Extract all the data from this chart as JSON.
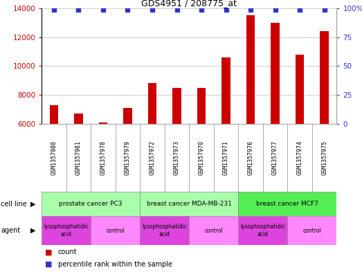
{
  "title": "GDS4951 / 208775_at",
  "samples": [
    "GSM1357980",
    "GSM1357981",
    "GSM1357978",
    "GSM1357979",
    "GSM1357972",
    "GSM1357973",
    "GSM1357970",
    "GSM1357971",
    "GSM1357976",
    "GSM1357977",
    "GSM1357974",
    "GSM1357975"
  ],
  "counts": [
    7300,
    6700,
    6100,
    7100,
    8800,
    8500,
    8500,
    10600,
    13500,
    13000,
    10800,
    12400
  ],
  "ylim_left": [
    6000,
    14000
  ],
  "ylim_right": [
    0,
    100
  ],
  "bar_color": "#cc0000",
  "dot_color": "#3333cc",
  "cell_line_groups": [
    {
      "label": "prostate cancer PC3",
      "start": 0,
      "end": 4,
      "color": "#aaffaa"
    },
    {
      "label": "breast cancer MDA-MB-231",
      "start": 4,
      "end": 8,
      "color": "#aaffaa"
    },
    {
      "label": "breast cancer MCF7",
      "start": 8,
      "end": 12,
      "color": "#55ee55"
    }
  ],
  "agent_groups": [
    {
      "label": "lysophosphatidic\nacid",
      "start": 0,
      "end": 2,
      "color": "#dd44dd"
    },
    {
      "label": "control",
      "start": 2,
      "end": 4,
      "color": "#ff88ff"
    },
    {
      "label": "lysophosphatidic\nacid",
      "start": 4,
      "end": 6,
      "color": "#dd44dd"
    },
    {
      "label": "control",
      "start": 6,
      "end": 8,
      "color": "#ff88ff"
    },
    {
      "label": "lysophosphatidic\nacid",
      "start": 8,
      "end": 10,
      "color": "#dd44dd"
    },
    {
      "label": "control",
      "start": 10,
      "end": 12,
      "color": "#ff88ff"
    }
  ],
  "yticks_left": [
    6000,
    8000,
    10000,
    12000,
    14000
  ],
  "yticks_right": [
    0,
    25,
    50,
    75,
    100
  ],
  "background_color": "#ffffff",
  "tick_color_left": "#cc0000",
  "tick_color_right": "#3333cc",
  "xlabels_bg": "#cccccc",
  "bar_width": 0.35
}
